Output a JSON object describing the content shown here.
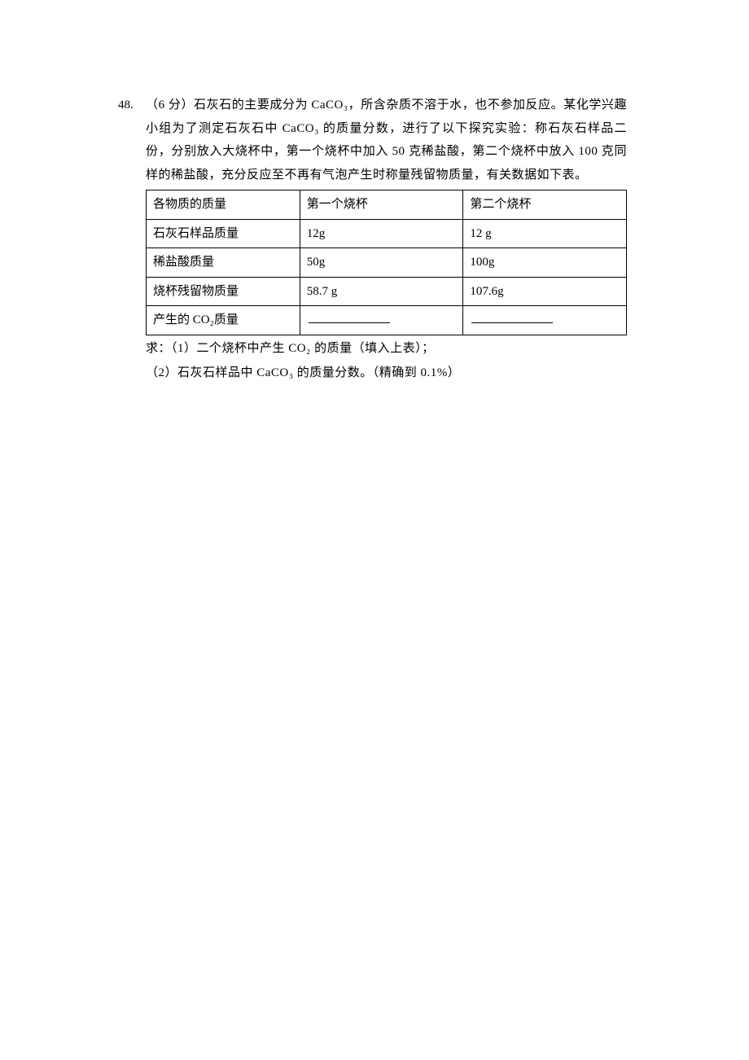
{
  "question": {
    "number": "48.",
    "points": "（6 分）",
    "intro": "石灰石的主要成分为 CaCO₃，所含杂质不溶于水，也不参加反应。某化学兴趣小组为了测定石灰石中 CaCO₃ 的质量分数，进行了以下探究实验：称石灰石样品二份，分别放入大烧杯中，第一个烧杯中加入 50 克稀盐酸，第二个烧杯中放入 100 克同样的稀盐酸，充分反应至不再有气泡产生时称量残留物质量，有关数据如下表。"
  },
  "table": {
    "headers": [
      "各物质的质量",
      "第一个烧杯",
      "第二个烧杯"
    ],
    "rows": [
      [
        "石灰石样品质量",
        "12g",
        "12 g"
      ],
      [
        "稀盐酸质量",
        "50g",
        "100g"
      ],
      [
        "烧杯残留物质量",
        "58.7 g",
        "107.6g"
      ]
    ],
    "last_row_label": "产生的 CO₂质量"
  },
  "sub_questions": {
    "prefix": "求：",
    "q1": "（1）二个烧杯中产生 CO₂ 的质量（填入上表）；",
    "q2": "（2）石灰石样品中 CaCO₃ 的质量分数。（精确到 0.1%）"
  }
}
